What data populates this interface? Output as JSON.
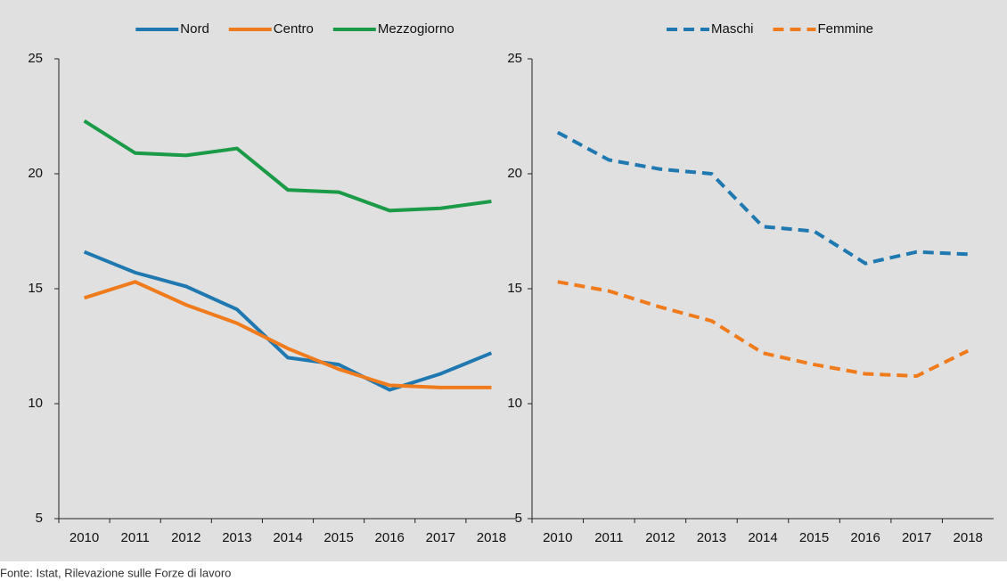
{
  "chart_data": [
    {
      "type": "line",
      "categories": [
        "2010",
        "2011",
        "2012",
        "2013",
        "2014",
        "2015",
        "2016",
        "2017",
        "2018"
      ],
      "ylim": [
        5,
        25
      ],
      "yticks": [
        5,
        10,
        15,
        20,
        25
      ],
      "line_style": "solid",
      "legend": "top",
      "series": [
        {
          "name": "Nord",
          "color": "#1f78b0",
          "values": [
            16.6,
            15.7,
            15.1,
            14.1,
            12.0,
            11.7,
            10.6,
            11.3,
            12.2
          ]
        },
        {
          "name": "Centro",
          "color": "#f07b1c",
          "values": [
            14.6,
            15.3,
            14.3,
            13.5,
            12.4,
            11.5,
            10.8,
            10.7,
            10.7
          ]
        },
        {
          "name": "Mezzogiorno",
          "color": "#1b9a48",
          "values": [
            22.3,
            20.9,
            20.8,
            21.1,
            19.3,
            19.2,
            18.4,
            18.5,
            18.8
          ]
        }
      ]
    },
    {
      "type": "line",
      "categories": [
        "2010",
        "2011",
        "2012",
        "2013",
        "2014",
        "2015",
        "2016",
        "2017",
        "2018"
      ],
      "ylim": [
        5,
        25
      ],
      "yticks": [
        5,
        10,
        15,
        20,
        25
      ],
      "line_style": "dashed",
      "legend": "top",
      "series": [
        {
          "name": "Maschi",
          "color": "#1f78b0",
          "values": [
            21.8,
            20.6,
            20.2,
            20.0,
            17.7,
            17.5,
            16.1,
            16.6,
            16.5
          ]
        },
        {
          "name": "Femmine",
          "color": "#f07b1c",
          "values": [
            15.3,
            14.9,
            14.2,
            13.6,
            12.2,
            11.7,
            11.3,
            11.2,
            12.3
          ]
        }
      ]
    }
  ],
  "source": "Fonte: Istat, Rilevazione sulle Forze di lavoro"
}
